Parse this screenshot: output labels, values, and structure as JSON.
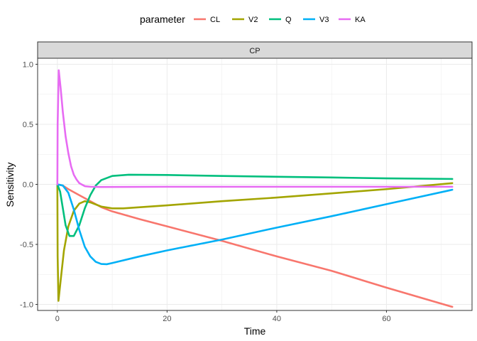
{
  "chart_data": {
    "type": "line",
    "facet": "CP",
    "xlabel": "Time",
    "ylabel": "Sensitivity",
    "xlim": [
      -3.6,
      75.6
    ],
    "ylim": [
      -1.05,
      1.05
    ],
    "x_ticks": [
      0,
      20,
      40,
      60
    ],
    "y_ticks": [
      -1.0,
      -0.5,
      0.0,
      0.5,
      1.0
    ],
    "y_tick_labels": [
      "-1.0",
      "-0.5",
      "0.0",
      "0.5",
      "1.0"
    ],
    "grid": true,
    "legend": {
      "title": "parameter",
      "placement": "top"
    },
    "series": [
      {
        "name": "CL",
        "color": "#F8766D",
        "points": [
          [
            0,
            0
          ],
          [
            1,
            -0.01
          ],
          [
            2,
            -0.04
          ],
          [
            4,
            -0.09
          ],
          [
            6,
            -0.14
          ],
          [
            8,
            -0.19
          ],
          [
            10,
            -0.225
          ],
          [
            15,
            -0.29
          ],
          [
            20,
            -0.35
          ],
          [
            30,
            -0.47
          ],
          [
            40,
            -0.6
          ],
          [
            50,
            -0.72
          ],
          [
            60,
            -0.86
          ],
          [
            72,
            -1.02
          ]
        ]
      },
      {
        "name": "V2",
        "color": "#A3A500",
        "points": [
          [
            0,
            0
          ],
          [
            0.05,
            -0.6
          ],
          [
            0.2,
            -0.97
          ],
          [
            0.6,
            -0.8
          ],
          [
            1.2,
            -0.55
          ],
          [
            2,
            -0.35
          ],
          [
            3,
            -0.22
          ],
          [
            4,
            -0.16
          ],
          [
            5,
            -0.14
          ],
          [
            6,
            -0.15
          ],
          [
            8,
            -0.185
          ],
          [
            10,
            -0.2
          ],
          [
            12,
            -0.2
          ],
          [
            20,
            -0.175
          ],
          [
            30,
            -0.14
          ],
          [
            40,
            -0.11
          ],
          [
            50,
            -0.075
          ],
          [
            60,
            -0.04
          ],
          [
            72,
            0.01
          ]
        ]
      },
      {
        "name": "Q",
        "color": "#00BF7D",
        "points": [
          [
            0,
            0
          ],
          [
            0.5,
            -0.06
          ],
          [
            1,
            -0.2
          ],
          [
            1.5,
            -0.34
          ],
          [
            2.2,
            -0.43
          ],
          [
            3,
            -0.43
          ],
          [
            4,
            -0.34
          ],
          [
            5,
            -0.2
          ],
          [
            6,
            -0.09
          ],
          [
            7,
            -0.01
          ],
          [
            8,
            0.035
          ],
          [
            10,
            0.07
          ],
          [
            13,
            0.08
          ],
          [
            20,
            0.078
          ],
          [
            30,
            0.07
          ],
          [
            40,
            0.063
          ],
          [
            50,
            0.057
          ],
          [
            60,
            0.05
          ],
          [
            72,
            0.045
          ]
        ]
      },
      {
        "name": "V3",
        "color": "#00B0F6",
        "points": [
          [
            0,
            0
          ],
          [
            1,
            -0.01
          ],
          [
            2,
            -0.07
          ],
          [
            3,
            -0.21
          ],
          [
            4,
            -0.38
          ],
          [
            5,
            -0.52
          ],
          [
            6,
            -0.6
          ],
          [
            7,
            -0.645
          ],
          [
            8,
            -0.663
          ],
          [
            9,
            -0.665
          ],
          [
            10,
            -0.655
          ],
          [
            15,
            -0.6
          ],
          [
            20,
            -0.55
          ],
          [
            30,
            -0.46
          ],
          [
            40,
            -0.36
          ],
          [
            50,
            -0.265
          ],
          [
            60,
            -0.165
          ],
          [
            72,
            -0.045
          ]
        ]
      },
      {
        "name": "KA",
        "color": "#E76BF3",
        "points": [
          [
            0,
            0
          ],
          [
            0.05,
            0.5
          ],
          [
            0.25,
            0.95
          ],
          [
            0.6,
            0.8
          ],
          [
            1,
            0.6
          ],
          [
            1.5,
            0.4
          ],
          [
            2,
            0.26
          ],
          [
            2.5,
            0.15
          ],
          [
            3,
            0.08
          ],
          [
            3.5,
            0.04
          ],
          [
            4,
            0.01
          ],
          [
            5,
            -0.015
          ],
          [
            6,
            -0.02
          ],
          [
            8,
            -0.022
          ],
          [
            20,
            -0.02
          ],
          [
            40,
            -0.02
          ],
          [
            60,
            -0.02
          ],
          [
            72,
            -0.02
          ]
        ]
      }
    ]
  }
}
